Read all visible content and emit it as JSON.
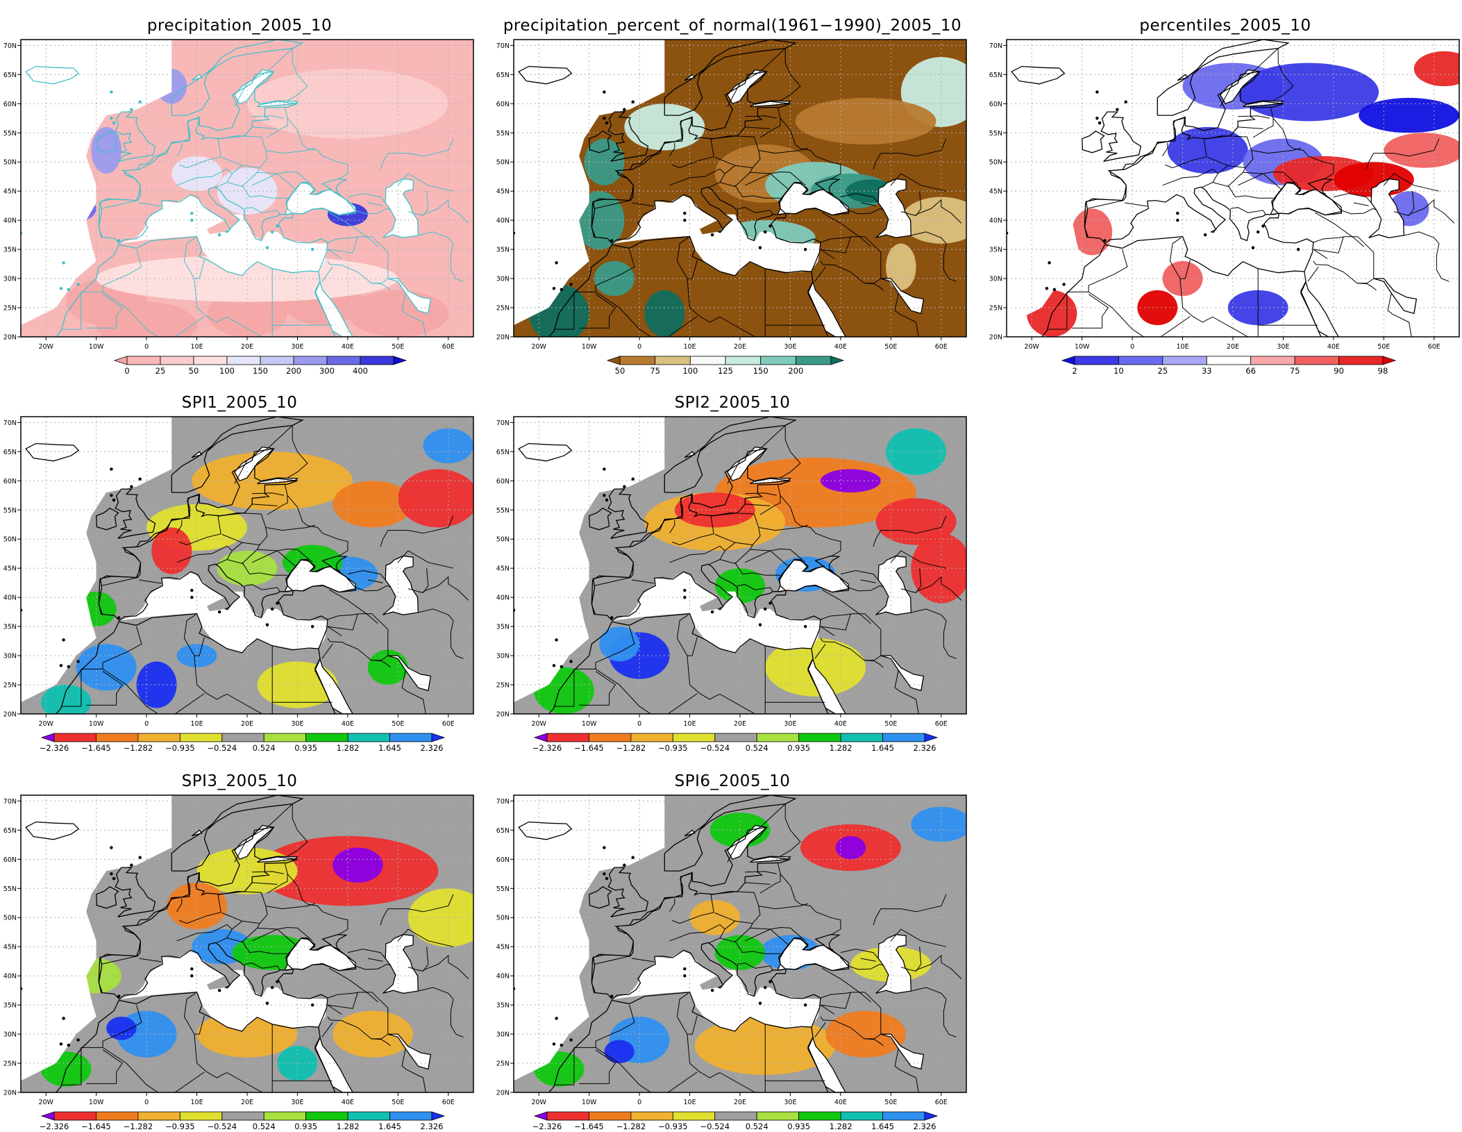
{
  "figure": {
    "axes": {
      "lon_min": -25,
      "lon_max": 65,
      "lat_min": 20,
      "lat_max": 71,
      "lon_ticks": [
        "20W",
        "10W",
        "0",
        "10E",
        "20E",
        "30E",
        "40E",
        "50E",
        "60E"
      ],
      "lat_ticks": [
        "20N",
        "25N",
        "30N",
        "35N",
        "40N",
        "45N",
        "50N",
        "55N",
        "60N",
        "65N",
        "70N"
      ],
      "grid": "dotted"
    },
    "panels": [
      {
        "id": "precipitation",
        "title": "precipitation_2005_10",
        "scheme": "precip",
        "colorbar": {
          "labels": [
            "0",
            "25",
            "50",
            "100",
            "150",
            "200",
            "300",
            "400"
          ],
          "colors": [
            "#f5a6a6",
            "#f8b8b8",
            "#fbcccc",
            "#fde0e0",
            "#e6e6fa",
            "#c8c8f5",
            "#9a9aee",
            "#6a6ae6",
            "#3838dc",
            "#1010d0"
          ]
        }
      },
      {
        "id": "percent_of_normal",
        "title": "precipitation_percent_of_normal(1961−1990)_2005_10",
        "scheme": "percent",
        "colorbar": {
          "labels": [
            "50",
            "75",
            "100",
            "125",
            "150",
            "200"
          ],
          "colors": [
            "#8c5210",
            "#b87a30",
            "#dcc080",
            "#f8f8f8",
            "#c8ece0",
            "#80cbbd",
            "#3a9a88",
            "#106e5e"
          ]
        }
      },
      {
        "id": "percentiles",
        "title": "percentiles_2005_10",
        "scheme": "pctl",
        "colorbar": {
          "labels": [
            "2",
            "10",
            "25",
            "33",
            "66",
            "75",
            "90",
            "98"
          ],
          "colors": [
            "#1010e0",
            "#3a3ae6",
            "#6a6aee",
            "#a8a8f5",
            "#ffffff",
            "#f8a8a8",
            "#f06060",
            "#e82828",
            "#e00000"
          ]
        }
      },
      {
        "id": "spi1",
        "title": "SPI1_2005_10",
        "scheme": "spi1",
        "colorbar": {
          "labels": [
            "−2.326",
            "−1.645",
            "−1.282",
            "−0.935",
            "−0.524",
            "0.524",
            "0.935",
            "1.282",
            "1.645",
            "2.326"
          ],
          "colors": [
            "#8a00e6",
            "#ee3030",
            "#f07c20",
            "#f0b030",
            "#e0e030",
            "#a0a0a0",
            "#a8e040",
            "#10c810",
            "#10c0b0",
            "#3090f0",
            "#1a30f0"
          ]
        }
      },
      {
        "id": "spi2",
        "title": "SPI2_2005_10",
        "scheme": "spi2",
        "colorbar": {
          "labels": [
            "−2.326",
            "−1.645",
            "−1.282",
            "−0.935",
            "−0.524",
            "0.524",
            "0.935",
            "1.282",
            "1.645",
            "2.326"
          ],
          "colors": [
            "#8a00e6",
            "#ee3030",
            "#f07c20",
            "#f0b030",
            "#e0e030",
            "#a0a0a0",
            "#a8e040",
            "#10c810",
            "#10c0b0",
            "#3090f0",
            "#1a30f0"
          ]
        }
      },
      {
        "id": "spi3",
        "title": "SPI3_2005_10",
        "scheme": "spi3",
        "colorbar": {
          "labels": [
            "−2.326",
            "−1.645",
            "−1.282",
            "−0.935",
            "−0.524",
            "0.524",
            "0.935",
            "1.282",
            "1.645",
            "2.326"
          ],
          "colors": [
            "#8a00e6",
            "#ee3030",
            "#f07c20",
            "#f0b030",
            "#e0e030",
            "#a0a0a0",
            "#a8e040",
            "#10c810",
            "#10c0b0",
            "#3090f0",
            "#1a30f0"
          ]
        }
      },
      {
        "id": "spi6",
        "title": "SPI6_2005_10",
        "scheme": "spi6",
        "colorbar": {
          "labels": [
            "−2.326",
            "−1.645",
            "−1.282",
            "−0.935",
            "−0.524",
            "0.524",
            "0.935",
            "1.282",
            "1.645",
            "2.326"
          ],
          "colors": [
            "#8a00e6",
            "#ee3030",
            "#f07c20",
            "#f0b030",
            "#e0e030",
            "#a0a0a0",
            "#a8e040",
            "#10c810",
            "#10c0b0",
            "#3090f0",
            "#1a30f0"
          ]
        }
      }
    ]
  }
}
